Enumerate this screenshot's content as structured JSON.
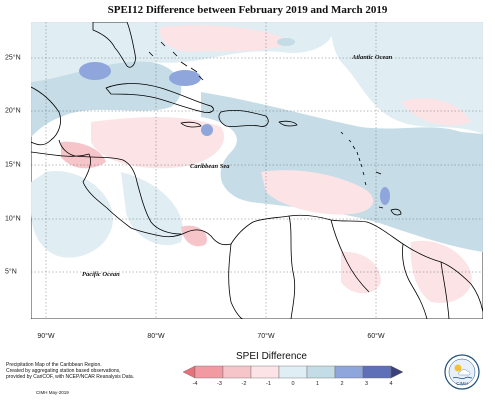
{
  "title": "SPEI12 Difference between February 2019 and March 2019",
  "labels": {
    "atlantic": "Atlantic Ocean",
    "caribbean": "Caribbean Sea",
    "pacific": "Pacific Ocean"
  },
  "axes": {
    "lon_ticks": [
      "90°W",
      "80°W",
      "70°W",
      "60°W"
    ],
    "lat_ticks": [
      "25°N",
      "20°N",
      "15°N",
      "10°N",
      "5°N"
    ]
  },
  "legend": {
    "title": "SPEI Difference",
    "tick_labels": [
      "-4",
      "-3",
      "-2",
      "-1",
      "0",
      "1",
      "2",
      "3",
      "4"
    ],
    "colors": [
      "#e8707a",
      "#f29aa2",
      "#f6c5ca",
      "#fbe3e6",
      "#dfeef4",
      "#c3dce6",
      "#8ea6dc",
      "#5f6fb8",
      "#39407a"
    ]
  },
  "footer": {
    "lines": [
      "Precipitation Map of the Caribbean Region.",
      "Created by aggregating station based observations,",
      "provided by CariCOF, with NCEP/NCAR Reanalysis Data."
    ],
    "credit": "CIMH May-2019",
    "logo_text": "CIMH"
  },
  "map": {
    "region": "Caribbean",
    "ocean_color": "#ffffff",
    "land_outline_color": "#000000",
    "positive_anomaly_color": "#c3dce6",
    "negative_anomaly_color": "#fbe3e6"
  }
}
